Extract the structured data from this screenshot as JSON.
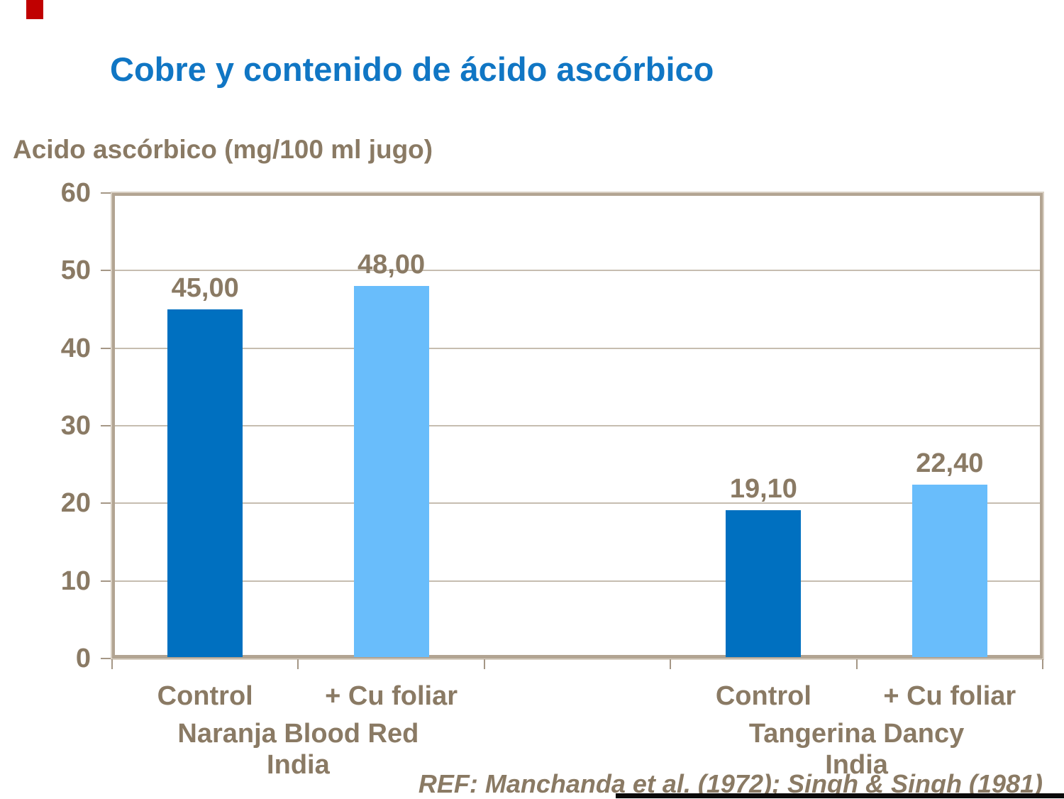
{
  "title": "Cobre y contenido de ácido ascórbico",
  "reference": "REF: Manchanda et al. (1972); Singh & Singh (1981)",
  "colors": {
    "title_blue": "#1076C4",
    "text_brown": "#8A7A64",
    "bar_dark": "#0070C0",
    "bar_light": "#69BDFB",
    "axis_line": "#B2A492",
    "gridline": "#C6BDB0",
    "red_accent": "#C00000",
    "bottom_strip": "#0A0A0A"
  },
  "chart_data": {
    "type": "bar",
    "title": "Cobre y contenido de ácido ascórbico",
    "ylabel": "Acido ascórbico (mg/100 ml jugo)",
    "xlabel": "",
    "ylim": [
      0,
      60
    ],
    "yticks": [
      0,
      10,
      20,
      30,
      40,
      50,
      60
    ],
    "ytick_labels": [
      "0",
      "10",
      "20",
      "30",
      "40",
      "50",
      "60"
    ],
    "grid": true,
    "legend": "none",
    "slots": 5,
    "bars": [
      {
        "slot": 0,
        "category": "Control",
        "group": "Naranja Blood Red India",
        "value": 45.0,
        "value_label": "45,00",
        "series": "dark"
      },
      {
        "slot": 1,
        "category": "+ Cu foliar",
        "group": "Naranja Blood Red India",
        "value": 48.0,
        "value_label": "48,00",
        "series": "light"
      },
      {
        "slot": 3,
        "category": "Control",
        "group": "Tangerina Dancy India",
        "value": 19.1,
        "value_label": "19,10",
        "series": "dark"
      },
      {
        "slot": 4,
        "category": "+ Cu foliar",
        "group": "Tangerina Dancy India",
        "value": 22.4,
        "value_label": "22,40",
        "series": "light"
      }
    ],
    "groups": [
      {
        "label": "Naranja Blood Red India",
        "lines": [
          "Naranja Blood Red",
          "India"
        ],
        "center_slot": 1.0
      },
      {
        "label": "Tangerina Dancy India",
        "lines": [
          "Tangerina Dancy",
          "India"
        ],
        "center_slot": 4.0
      }
    ]
  }
}
